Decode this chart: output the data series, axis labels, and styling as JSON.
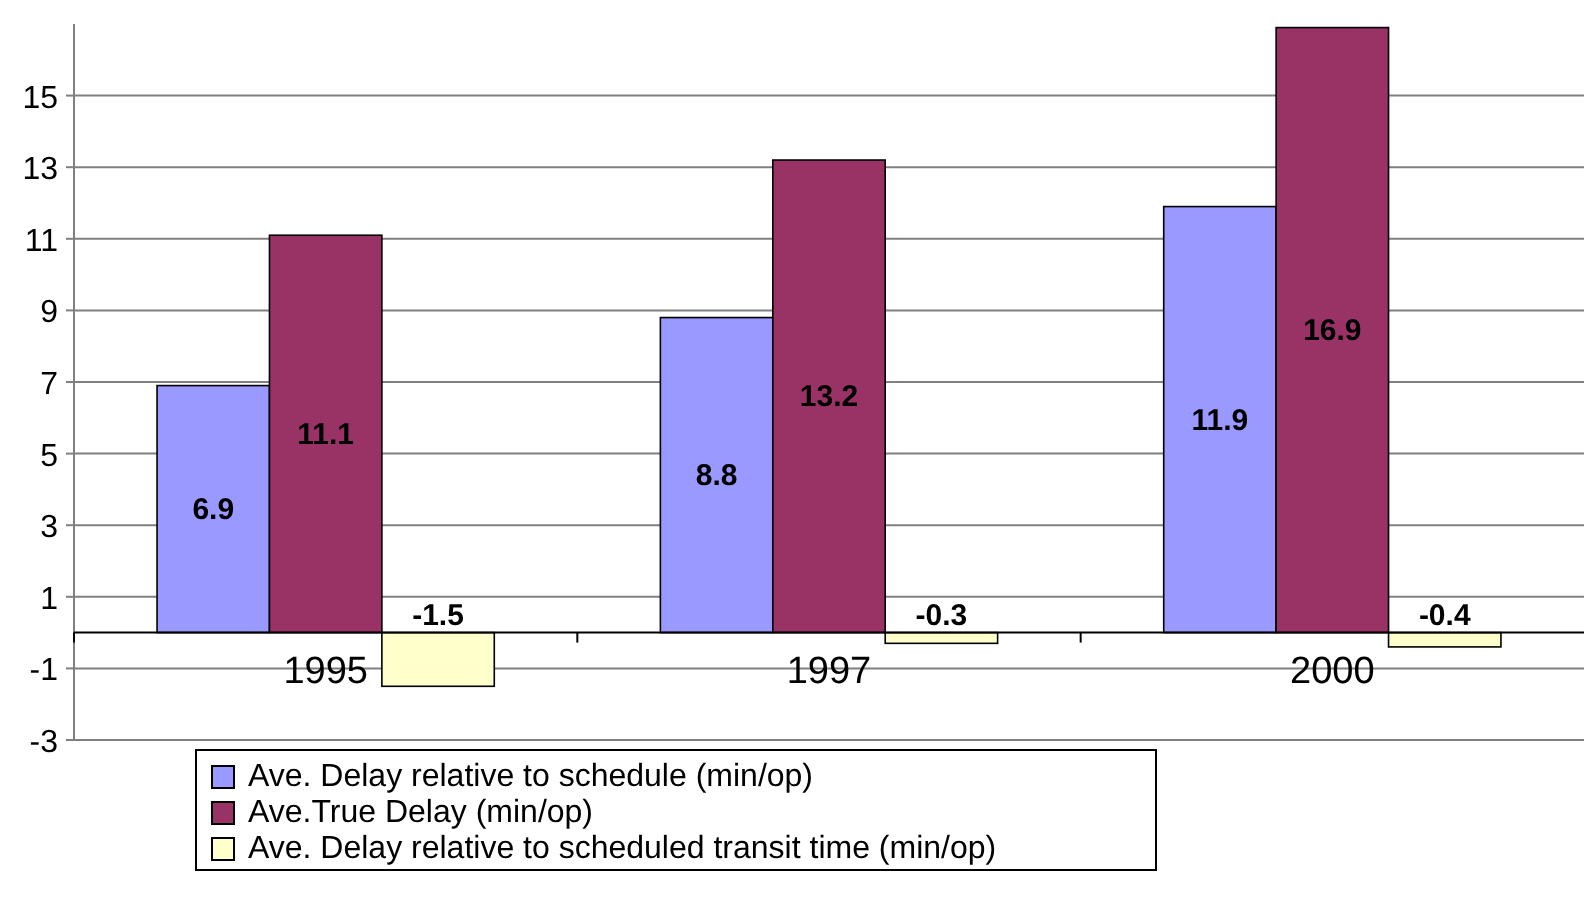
{
  "chart_data": {
    "type": "bar",
    "categories": [
      "1995",
      "1997",
      "2000"
    ],
    "series": [
      {
        "name": "Ave. Delay relative to schedule (min/op)",
        "color": "#9999ff",
        "values": [
          6.9,
          8.8,
          11.9
        ]
      },
      {
        "name": "Ave.True Delay (min/op)",
        "color": "#993366",
        "values": [
          11.1,
          13.2,
          16.9
        ]
      },
      {
        "name": "Ave. Delay relative to scheduled transit time (min/op)",
        "color": "#ffffcc",
        "values": [
          -1.5,
          -0.3,
          -0.4
        ]
      }
    ],
    "ylim": [
      -3,
      17
    ],
    "yticks": [
      -3,
      -1,
      1,
      3,
      5,
      7,
      9,
      11,
      13,
      15
    ],
    "grid": "y",
    "legend": "bottom",
    "data_labels": true
  }
}
